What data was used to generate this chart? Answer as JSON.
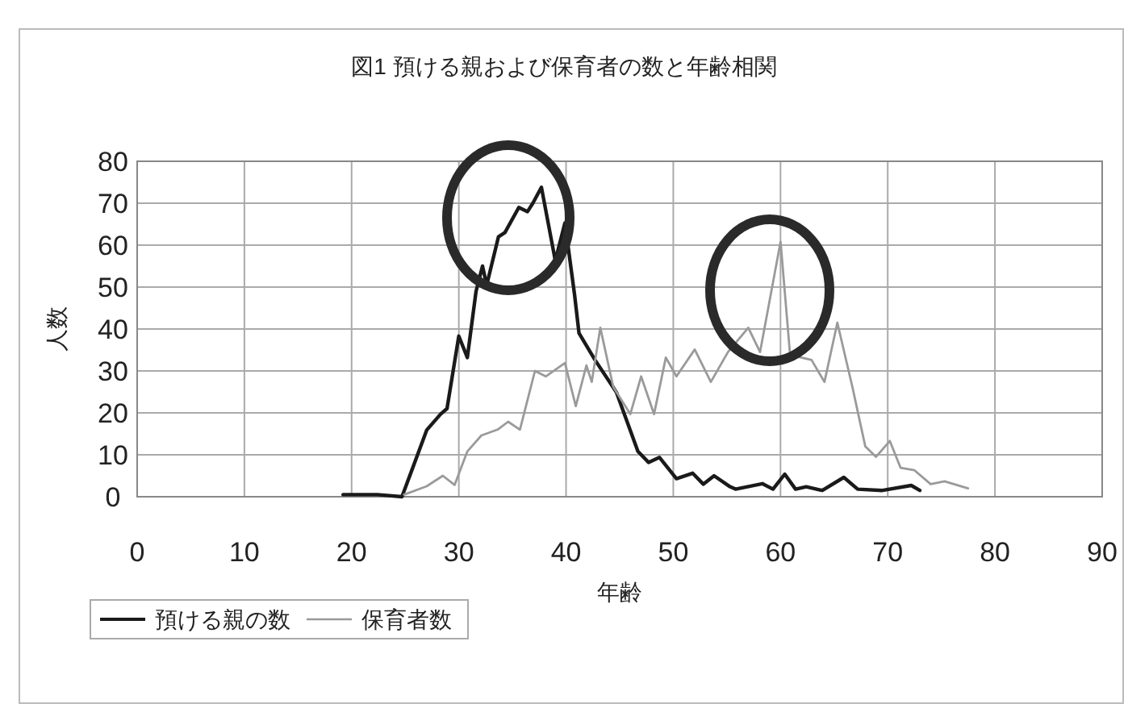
{
  "chart_data": {
    "type": "line",
    "title": "図1  預ける親および保育者の数と年齢相関",
    "xlabel": "年齢",
    "ylabel": "人数",
    "xlim": [
      0,
      90
    ],
    "xticks": [
      0,
      10,
      20,
      30,
      40,
      50,
      60,
      70,
      80,
      90
    ],
    "ylim": [
      0,
      80
    ],
    "yticks": [
      0,
      10,
      20,
      30,
      40,
      50,
      60,
      70,
      80
    ],
    "grid": true,
    "legend": "bottom",
    "series": [
      {
        "name": "預ける親の数",
        "color": "#1a1a1a",
        "x": [
          19.2,
          22.4,
          24.7,
          27.0,
          28.3,
          28.9,
          30.0,
          30.8,
          31.6,
          32.2,
          32.6,
          33.7,
          34.3,
          35.6,
          36.4,
          36.9,
          37.7,
          39.0,
          39.9,
          40.8,
          41.2,
          42.7,
          44.7,
          46.7,
          47.7,
          48.7,
          50.3,
          51.8,
          52.8,
          53.8,
          55.3,
          55.8,
          58.3,
          59.3,
          60.4,
          61.4,
          62.4,
          63.9,
          65.9,
          67.2,
          69.5,
          72.2,
          73.0
        ],
        "values": [
          0.5,
          0.5,
          0,
          15.9,
          19.7,
          21,
          38.3,
          33.2,
          49,
          55,
          50.5,
          62,
          63,
          69,
          68,
          70,
          73.8,
          56.3,
          65.3,
          48,
          39,
          32.6,
          24.9,
          10.8,
          8.2,
          9.4,
          4.3,
          5.6,
          3.0,
          5,
          2.4,
          1.8,
          3.1,
          1.8,
          5.4,
          1.8,
          2.4,
          1.5,
          4.6,
          1.8,
          1.5,
          2.7,
          1.5
        ]
      },
      {
        "name": "保育者数",
        "color": "#9a9a9a",
        "x": [
          24.9,
          27.0,
          28.5,
          29.6,
          30.8,
          32.1,
          33.6,
          34.6,
          35.7,
          37.1,
          38.1,
          39.9,
          40.9,
          41.9,
          42.4,
          43.2,
          44.4,
          46.0,
          47.0,
          48.2,
          49.3,
          50.3,
          52.0,
          53.5,
          55.1,
          57.0,
          58.1,
          60.0,
          60.9,
          62.9,
          64.1,
          65.3,
          66.7,
          67.9,
          68.9,
          70.2,
          71.2,
          72.5,
          74.0,
          75.3,
          77.5
        ],
        "values": [
          0.5,
          2.5,
          5,
          2.8,
          10.8,
          14.6,
          16,
          17.9,
          16,
          30,
          28.7,
          31.9,
          21.6,
          31.3,
          27.4,
          40.3,
          26.2,
          19.7,
          28.7,
          19.7,
          33.2,
          28.7,
          35.1,
          27.4,
          34.5,
          40.3,
          34.5,
          60.8,
          33.8,
          32.6,
          27.4,
          41.5,
          26.2,
          12,
          9.5,
          13.3,
          6.9,
          6.3,
          3,
          3.7,
          2
        ]
      }
    ]
  }
}
